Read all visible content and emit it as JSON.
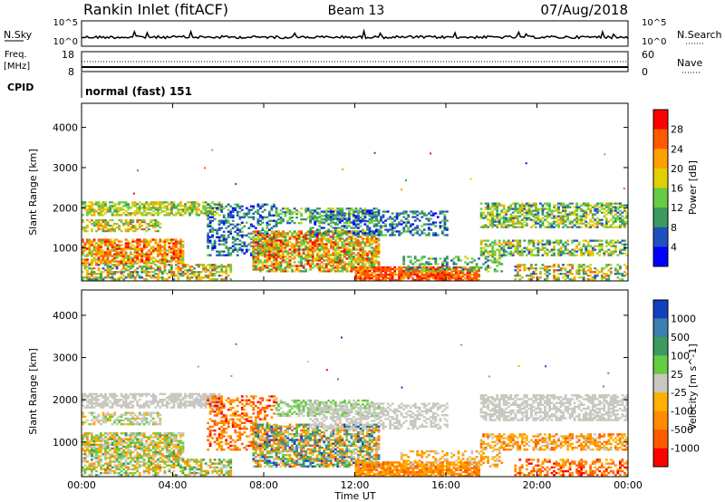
{
  "header": {
    "station": "Rankin Inlet (fitACF)",
    "beam": "Beam 13",
    "date": "07/Aug/2018"
  },
  "top_panels": {
    "nsky_label": "N.Sky",
    "nsky_ticks": [
      "10^5",
      "10^0"
    ],
    "nsearch_label": "N.Search",
    "nsearch_ticks": [
      "10^5",
      "10^0"
    ],
    "freq_label_line1": "Freq.",
    "freq_label_line2": "[MHz]",
    "freq_ticks": [
      "18",
      "8"
    ],
    "nave_label": "Nave",
    "nave_ticks": [
      "60",
      "0"
    ],
    "cpid_label": "CPID",
    "cpid_value": "normal (fast) 151"
  },
  "x_axis": {
    "label": "Time UT",
    "ticks": [
      "00:00",
      "04:00",
      "08:00",
      "12:00",
      "16:00",
      "20:00",
      "00:00"
    ]
  },
  "colors": {
    "grid": "#000000",
    "bg": "#ffffff"
  },
  "chart_data": [
    {
      "type": "heatmap",
      "title": "",
      "xlabel": "Time UT",
      "ylabel": "Slant Range [km]",
      "xlim": [
        0,
        24
      ],
      "ylim": [
        180,
        4600
      ],
      "y_ticks": [
        "1000",
        "2000",
        "3000",
        "4000"
      ],
      "colorbar_label": "Power [dB]",
      "colorbar_ticks": [
        "4",
        "8",
        "12",
        "16",
        "20",
        "24",
        "28"
      ],
      "colorbar_colors": [
        "#0000ff",
        "#2050c0",
        "#3a9a60",
        "#66cc44",
        "#e0d000",
        "#ffa000",
        "#ff5a00",
        "#ff0000"
      ],
      "bands": [
        {
          "t": [
            0.0,
            6.0
          ],
          "r": [
            1800,
            2150
          ],
          "lvl": [
            2,
            5
          ],
          "p": 0.65
        },
        {
          "t": [
            0.0,
            3.5
          ],
          "r": [
            1400,
            1700
          ],
          "lvl": [
            2,
            6
          ],
          "p": 0.55
        },
        {
          "t": [
            0.0,
            4.5
          ],
          "r": [
            600,
            1200
          ],
          "lvl": [
            3,
            7
          ],
          "p": 0.75
        },
        {
          "t": [
            0.0,
            6.5
          ],
          "r": [
            200,
            600
          ],
          "lvl": [
            1,
            6
          ],
          "p": 0.55
        },
        {
          "t": [
            5.5,
            8.5
          ],
          "r": [
            800,
            2100
          ],
          "lvl": [
            0,
            3
          ],
          "p": 0.4
        },
        {
          "t": [
            7.5,
            13.0
          ],
          "r": [
            400,
            1400
          ],
          "lvl": [
            2,
            7
          ],
          "p": 0.7
        },
        {
          "t": [
            8.5,
            13.0
          ],
          "r": [
            1600,
            2000
          ],
          "lvl": [
            1,
            4
          ],
          "p": 0.5
        },
        {
          "t": [
            10.0,
            16.0
          ],
          "r": [
            1300,
            1900
          ],
          "lvl": [
            0,
            3
          ],
          "p": 0.45
        },
        {
          "t": [
            12.0,
            17.5
          ],
          "r": [
            180,
            500
          ],
          "lvl": [
            5,
            7
          ],
          "p": 0.85
        },
        {
          "t": [
            14.0,
            18.5
          ],
          "r": [
            400,
            800
          ],
          "lvl": [
            1,
            4
          ],
          "p": 0.35
        },
        {
          "t": [
            17.5,
            24.0
          ],
          "r": [
            1500,
            2100
          ],
          "lvl": [
            1,
            5
          ],
          "p": 0.6
        },
        {
          "t": [
            17.5,
            24.0
          ],
          "r": [
            800,
            1200
          ],
          "lvl": [
            1,
            5
          ],
          "p": 0.55
        },
        {
          "t": [
            19.0,
            24.0
          ],
          "r": [
            200,
            600
          ],
          "lvl": [
            1,
            6
          ],
          "p": 0.45
        }
      ]
    },
    {
      "type": "heatmap",
      "title": "",
      "xlabel": "Time UT",
      "ylabel": "Slant Range [km]",
      "xlim": [
        0,
        24
      ],
      "ylim": [
        180,
        4600
      ],
      "y_ticks": [
        "1000",
        "2000",
        "3000",
        "4000"
      ],
      "colorbar_label": "Velocity [m s^-1]",
      "colorbar_ticks": [
        "1000",
        "500",
        "100",
        "25",
        "-25",
        "-100",
        "-500",
        "-1000"
      ],
      "colorbar_colors": [
        "#1040c0",
        "#3a80b0",
        "#3a9a60",
        "#66cc44",
        "#c8c8c0",
        "#ffb000",
        "#ff8c00",
        "#ff5a00",
        "#ff0000"
      ],
      "bands": [
        {
          "t": [
            0.0,
            6.0
          ],
          "r": [
            1800,
            2150
          ],
          "lvl": [
            4,
            4
          ],
          "p": 0.65
        },
        {
          "t": [
            0.0,
            3.5
          ],
          "r": [
            1400,
            1700
          ],
          "lvl": [
            3,
            5
          ],
          "p": 0.55
        },
        {
          "t": [
            0.0,
            4.5
          ],
          "r": [
            600,
            1200
          ],
          "lvl": [
            2,
            6
          ],
          "p": 0.75
        },
        {
          "t": [
            0.0,
            6.5
          ],
          "r": [
            200,
            600
          ],
          "lvl": [
            2,
            6
          ],
          "p": 0.55
        },
        {
          "t": [
            5.5,
            8.5
          ],
          "r": [
            800,
            2100
          ],
          "lvl": [
            5,
            8
          ],
          "p": 0.4
        },
        {
          "t": [
            7.5,
            13.0
          ],
          "r": [
            400,
            1400
          ],
          "lvl": [
            0,
            7
          ],
          "p": 0.7
        },
        {
          "t": [
            8.5,
            13.0
          ],
          "r": [
            1600,
            2000
          ],
          "lvl": [
            3,
            4
          ],
          "p": 0.5
        },
        {
          "t": [
            10.0,
            16.0
          ],
          "r": [
            1300,
            1900
          ],
          "lvl": [
            4,
            4
          ],
          "p": 0.45
        },
        {
          "t": [
            12.0,
            17.5
          ],
          "r": [
            180,
            500
          ],
          "lvl": [
            5,
            7
          ],
          "p": 0.85
        },
        {
          "t": [
            14.0,
            18.5
          ],
          "r": [
            400,
            800
          ],
          "lvl": [
            4,
            6
          ],
          "p": 0.35
        },
        {
          "t": [
            17.5,
            24.0
          ],
          "r": [
            1500,
            2100
          ],
          "lvl": [
            4,
            4
          ],
          "p": 0.6
        },
        {
          "t": [
            17.5,
            24.0
          ],
          "r": [
            800,
            1200
          ],
          "lvl": [
            4,
            7
          ],
          "p": 0.55
        },
        {
          "t": [
            19.0,
            24.0
          ],
          "r": [
            200,
            600
          ],
          "lvl": [
            5,
            8
          ],
          "p": 0.45
        }
      ]
    }
  ]
}
